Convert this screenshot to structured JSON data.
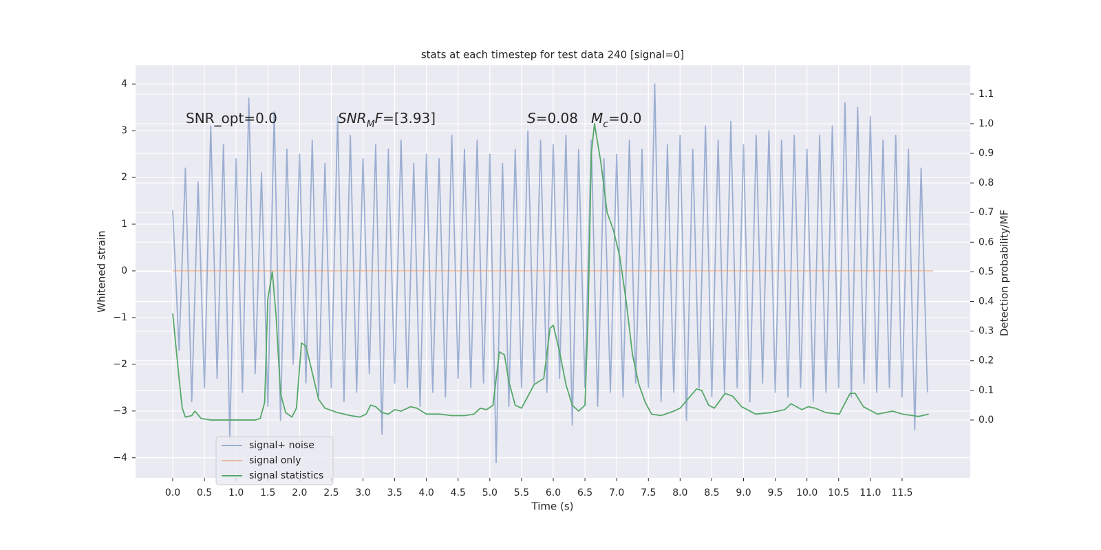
{
  "chart_data": {
    "type": "line",
    "title": "stats at each timestep for test data 240 [signal=0]",
    "xlabel": "Time (s)",
    "ylabel": "Whitened strain",
    "y2label": "Detection probability/MF",
    "grid": true,
    "legend": "lower left",
    "xlim": [
      -0.586,
      12.575
    ],
    "ylim": [
      -4.43,
      4.4
    ],
    "y2lim": [
      -0.195,
      1.197
    ],
    "xticks": [
      {
        "value": 0,
        "label": "0.0"
      },
      0.5,
      {
        "value": 1,
        "label": "1.0"
      },
      1.5,
      {
        "value": 2,
        "label": "2.0"
      },
      2.5,
      {
        "value": 3,
        "label": "3.0"
      },
      3.5,
      {
        "value": 4,
        "label": "4.0"
      },
      4.5,
      {
        "value": 5,
        "label": "5.0"
      },
      5.5,
      {
        "value": 6,
        "label": "6.0"
      },
      6.5,
      {
        "value": 7,
        "label": "7.0"
      },
      7.5,
      {
        "value": 8,
        "label": "8.0"
      },
      8.5,
      {
        "value": 9,
        "label": "9.0"
      },
      9.5,
      {
        "value": 10,
        "label": "10.0"
      },
      10.5,
      {
        "value": 11,
        "label": "11.0"
      },
      11.5
    ],
    "yticks": [
      {
        "value": -4,
        "label": "−4"
      },
      {
        "value": -3,
        "label": "−3"
      },
      {
        "value": -2,
        "label": "−2"
      },
      {
        "value": -1,
        "label": "−1"
      },
      0,
      1,
      2,
      3,
      4
    ],
    "y2ticks": [
      {
        "value": 0,
        "label": "0.0"
      },
      0.1,
      0.2,
      0.3,
      0.4,
      0.5,
      0.6,
      0.7,
      0.8,
      0.9,
      {
        "value": 1,
        "label": "1.0"
      },
      1.1
    ],
    "annotations": [
      {
        "parts": [
          {
            "text": "SNR_opt=0.0"
          }
        ]
      },
      {
        "parts": [
          {
            "text": "SNR",
            "italic": true
          },
          {
            "text": "M",
            "italic": true,
            "sub": true
          },
          {
            "text": "F",
            "italic": true
          },
          {
            "text": "=[3.93]"
          }
        ]
      },
      {
        "parts": [
          {
            "text": "S",
            "italic": true
          },
          {
            "text": "=0.08"
          }
        ]
      },
      {
        "parts": [
          {
            "text": "M",
            "italic": true
          },
          {
            "text": "c",
            "italic": true,
            "sub": true
          },
          {
            "text": "=0.0"
          }
        ]
      }
    ],
    "series": [
      {
        "name": "signal+ noise",
        "color": "#4c72b0",
        "opacity": 0.5,
        "x": [
          0,
          0.1,
          0.2,
          0.3,
          0.4,
          0.5,
          0.6,
          0.7,
          0.8,
          0.9,
          1,
          1.1,
          1.2,
          1.3,
          1.4,
          1.5,
          1.6,
          1.7,
          1.8,
          1.9,
          2,
          2.1,
          2.2,
          2.3,
          2.4,
          2.5,
          2.6,
          2.7,
          2.8,
          2.9,
          3,
          3.1,
          3.2,
          3.3,
          3.4,
          3.5,
          3.6,
          3.7,
          3.8,
          3.9,
          4,
          4.1,
          4.2,
          4.3,
          4.4,
          4.5,
          4.6,
          4.7,
          4.8,
          4.9,
          5,
          5.1,
          5.2,
          5.3,
          5.4,
          5.5,
          5.6,
          5.7,
          5.8,
          5.9,
          6,
          6.1,
          6.2,
          6.3,
          6.4,
          6.5,
          6.6,
          6.7,
          6.8,
          6.9,
          7,
          7.1,
          7.2,
          7.3,
          7.4,
          7.5,
          7.6,
          7.7,
          7.8,
          7.9,
          8,
          8.1,
          8.2,
          8.3,
          8.4,
          8.5,
          8.6,
          8.7,
          8.8,
          8.9,
          9,
          9.1,
          9.2,
          9.3,
          9.4,
          9.5,
          9.6,
          9.7,
          9.8,
          9.9,
          10,
          10.1,
          10.2,
          10.3,
          10.4,
          10.5,
          10.6,
          10.7,
          10.8,
          10.9,
          11,
          11.1,
          11.2,
          11.3,
          11.4,
          11.5,
          11.6,
          11.7,
          11.8,
          11.9
        ],
        "values": [
          1.3,
          -1.7,
          2.2,
          -2.8,
          1.9,
          -2.5,
          3.1,
          -2.3,
          2.7,
          -3.6,
          2.4,
          -2.6,
          3.7,
          -2.2,
          2.1,
          -2.9,
          3.4,
          -3.2,
          2.6,
          -2.0,
          2.5,
          -2.4,
          2.8,
          -2.7,
          2.3,
          -2.5,
          3.3,
          -2.8,
          2.9,
          -2.6,
          2.4,
          -2.2,
          2.7,
          -3.5,
          2.6,
          -2.4,
          2.8,
          -2.5,
          2.3,
          -2.9,
          2.5,
          -2.6,
          2.4,
          -2.7,
          2.9,
          -2.3,
          2.6,
          -2.5,
          2.8,
          -2.4,
          2.5,
          -4.1,
          2.3,
          -2.9,
          2.6,
          -2.5,
          3.0,
          -2.4,
          2.8,
          -2.6,
          2.7,
          -2.3,
          2.9,
          -3.3,
          2.6,
          -2.5,
          2.8,
          -2.9,
          2.4,
          -2.6,
          2.5,
          -2.7,
          2.8,
          -2.4,
          2.6,
          -2.5,
          4.0,
          -2.8,
          2.7,
          -2.6,
          2.9,
          -3.2,
          2.6,
          -2.5,
          3.1,
          -2.7,
          2.8,
          -2.6,
          3.2,
          -2.5,
          2.7,
          -2.8,
          2.9,
          -2.4,
          3.0,
          -2.6,
          2.8,
          -2.7,
          2.9,
          -2.5,
          2.6,
          -2.8,
          2.9,
          -2.6,
          3.1,
          -2.5,
          3.6,
          -2.7,
          3.5,
          -2.4,
          3.3,
          -2.6,
          2.8,
          -2.5,
          2.9,
          -2.7,
          2.6,
          -3.4,
          2.2,
          -2.6
        ]
      },
      {
        "name": "signal only",
        "color": "#dd8452",
        "opacity": 0.5,
        "x": [
          0,
          11.99
        ],
        "values": [
          0,
          0
        ]
      },
      {
        "name": "signal statistics",
        "color": "#55a868",
        "opacity": 1,
        "axis": "y2",
        "x": [
          0,
          0.05,
          0.1,
          0.15,
          0.2,
          0.3,
          0.35,
          0.45,
          0.6,
          1.0,
          1.3,
          1.38,
          1.45,
          1.5,
          1.57,
          1.63,
          1.7,
          1.78,
          1.88,
          1.95,
          2.03,
          2.1,
          2.2,
          2.3,
          2.4,
          2.6,
          2.8,
          2.95,
          3.05,
          3.12,
          3.2,
          3.3,
          3.4,
          3.5,
          3.6,
          3.75,
          3.85,
          4.0,
          4.2,
          4.4,
          4.6,
          4.75,
          4.85,
          4.95,
          5.05,
          5.15,
          5.23,
          5.3,
          5.4,
          5.5,
          5.6,
          5.7,
          5.85,
          5.95,
          6.0,
          6.1,
          6.2,
          6.3,
          6.4,
          6.5,
          6.55,
          6.6,
          6.65,
          6.75,
          6.85,
          6.95,
          7.05,
          7.15,
          7.25,
          7.35,
          7.45,
          7.55,
          7.7,
          7.9,
          8.0,
          8.26,
          8.34,
          8.45,
          8.54,
          8.71,
          8.83,
          8.97,
          9.19,
          9.43,
          9.65,
          9.75,
          9.92,
          10.02,
          10.13,
          10.3,
          10.51,
          10.68,
          10.76,
          10.89,
          11.11,
          11.35,
          11.51,
          11.76,
          11.92
        ],
        "values": [
          0.36,
          0.25,
          0.14,
          0.04,
          0.01,
          0.015,
          0.03,
          0.005,
          0.0,
          0.0,
          0.0,
          0.005,
          0.06,
          0.41,
          0.5,
          0.35,
          0.09,
          0.025,
          0.01,
          0.04,
          0.26,
          0.25,
          0.16,
          0.07,
          0.04,
          0.025,
          0.015,
          0.01,
          0.02,
          0.05,
          0.045,
          0.025,
          0.02,
          0.035,
          0.03,
          0.045,
          0.04,
          0.02,
          0.02,
          0.015,
          0.015,
          0.02,
          0.04,
          0.035,
          0.05,
          0.23,
          0.22,
          0.13,
          0.05,
          0.04,
          0.08,
          0.12,
          0.14,
          0.31,
          0.32,
          0.23,
          0.12,
          0.05,
          0.03,
          0.05,
          0.36,
          0.9,
          1.0,
          0.87,
          0.7,
          0.64,
          0.55,
          0.4,
          0.22,
          0.12,
          0.06,
          0.02,
          0.015,
          0.03,
          0.04,
          0.105,
          0.1,
          0.05,
          0.04,
          0.09,
          0.08,
          0.045,
          0.02,
          0.025,
          0.035,
          0.055,
          0.035,
          0.045,
          0.04,
          0.025,
          0.02,
          0.09,
          0.09,
          0.045,
          0.02,
          0.03,
          0.02,
          0.012,
          0.02
        ]
      }
    ]
  }
}
